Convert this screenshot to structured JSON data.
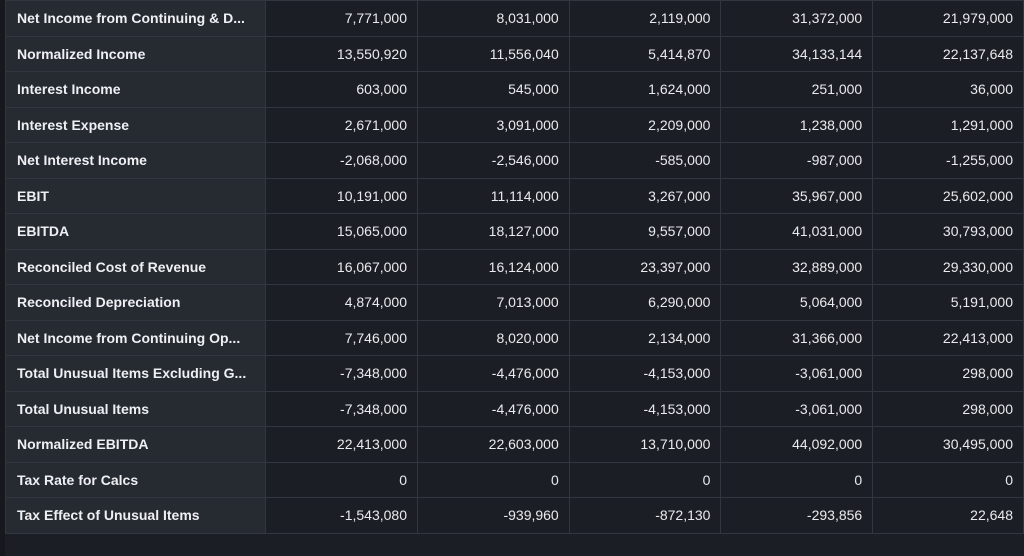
{
  "table": {
    "rows": [
      {
        "label": "Net Income from Continuing & D...",
        "values": [
          "7,771,000",
          "8,031,000",
          "2,119,000",
          "31,372,000",
          "21,979,000"
        ]
      },
      {
        "label": "Normalized Income",
        "values": [
          "13,550,920",
          "11,556,040",
          "5,414,870",
          "34,133,144",
          "22,137,648"
        ]
      },
      {
        "label": "Interest Income",
        "values": [
          "603,000",
          "545,000",
          "1,624,000",
          "251,000",
          "36,000"
        ]
      },
      {
        "label": "Interest Expense",
        "values": [
          "2,671,000",
          "3,091,000",
          "2,209,000",
          "1,238,000",
          "1,291,000"
        ]
      },
      {
        "label": "Net Interest Income",
        "values": [
          "-2,068,000",
          "-2,546,000",
          "-585,000",
          "-987,000",
          "-1,255,000"
        ]
      },
      {
        "label": "EBIT",
        "values": [
          "10,191,000",
          "11,114,000",
          "3,267,000",
          "35,967,000",
          "25,602,000"
        ]
      },
      {
        "label": "EBITDA",
        "values": [
          "15,065,000",
          "18,127,000",
          "9,557,000",
          "41,031,000",
          "30,793,000"
        ]
      },
      {
        "label": "Reconciled Cost of Revenue",
        "values": [
          "16,067,000",
          "16,124,000",
          "23,397,000",
          "32,889,000",
          "29,330,000"
        ]
      },
      {
        "label": "Reconciled Depreciation",
        "values": [
          "4,874,000",
          "7,013,000",
          "6,290,000",
          "5,064,000",
          "5,191,000"
        ]
      },
      {
        "label": "Net Income from Continuing Op...",
        "values": [
          "7,746,000",
          "8,020,000",
          "2,134,000",
          "31,366,000",
          "22,413,000"
        ]
      },
      {
        "label": "Total Unusual Items Excluding G...",
        "values": [
          "-7,348,000",
          "-4,476,000",
          "-4,153,000",
          "-3,061,000",
          "298,000"
        ]
      },
      {
        "label": "Total Unusual Items",
        "values": [
          "-7,348,000",
          "-4,476,000",
          "-4,153,000",
          "-3,061,000",
          "298,000"
        ]
      },
      {
        "label": "Normalized EBITDA",
        "values": [
          "22,413,000",
          "22,603,000",
          "13,710,000",
          "44,092,000",
          "30,495,000"
        ]
      },
      {
        "label": "Tax Rate for Calcs",
        "values": [
          "0",
          "0",
          "0",
          "0",
          "0"
        ]
      },
      {
        "label": "Tax Effect of Unusual Items",
        "values": [
          "-1,543,080",
          "-939,960",
          "-872,130",
          "-293,856",
          "22,648"
        ]
      }
    ]
  }
}
